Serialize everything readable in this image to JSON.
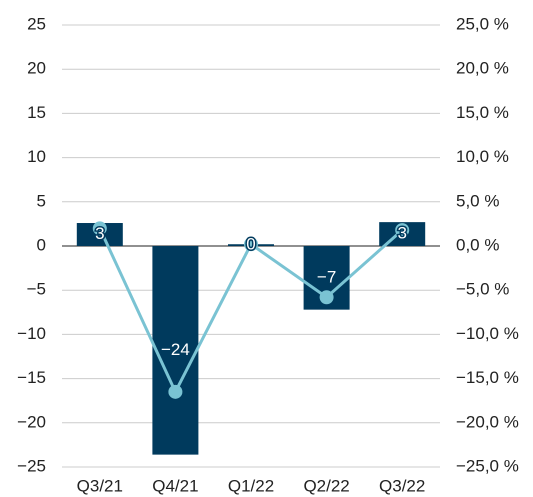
{
  "chart_data": {
    "type": "bar",
    "categories": [
      "Q3/21",
      "Q4/21",
      "Q1/22",
      "Q2/22",
      "Q3/22"
    ],
    "series": [
      {
        "type": "bar",
        "color": "#003a5d",
        "values": [
          2.6,
          -23.6,
          0.2,
          -7.2,
          2.7
        ],
        "value_labels": [
          "3",
          "−24",
          "0",
          "−7",
          "3"
        ]
      },
      {
        "type": "line",
        "axis": "y2",
        "color": "#7ac3d3",
        "values": [
          2.0,
          -16.5,
          0.2,
          -5.8,
          1.8
        ]
      }
    ],
    "ylim": [
      -25,
      25
    ],
    "yticks": [
      25,
      20,
      15,
      10,
      5,
      0,
      {
        "value": -5,
        "label": "−5"
      },
      {
        "value": -10,
        "label": "−10"
      },
      {
        "value": -15,
        "label": "−15"
      },
      {
        "value": -20,
        "label": "−20"
      },
      {
        "value": -25,
        "label": "−25"
      }
    ],
    "y2lim": [
      -25,
      25
    ],
    "y2ticks": [
      {
        "value": 25,
        "label": "25,0 %"
      },
      {
        "value": 20,
        "label": "20,0 %"
      },
      {
        "value": 15,
        "label": "15,0 %"
      },
      {
        "value": 10,
        "label": "10,0 %"
      },
      {
        "value": 5,
        "label": "5,0 %"
      },
      {
        "value": 0,
        "label": "0,0 %"
      },
      {
        "value": -5,
        "label": "−5,0 %"
      },
      {
        "value": -10,
        "label": "−10,0 %"
      },
      {
        "value": -15,
        "label": "−15,0 %"
      },
      {
        "value": -20,
        "label": "−20,0 %"
      },
      {
        "value": -25,
        "label": "−25,0 %"
      }
    ],
    "grid": true
  }
}
